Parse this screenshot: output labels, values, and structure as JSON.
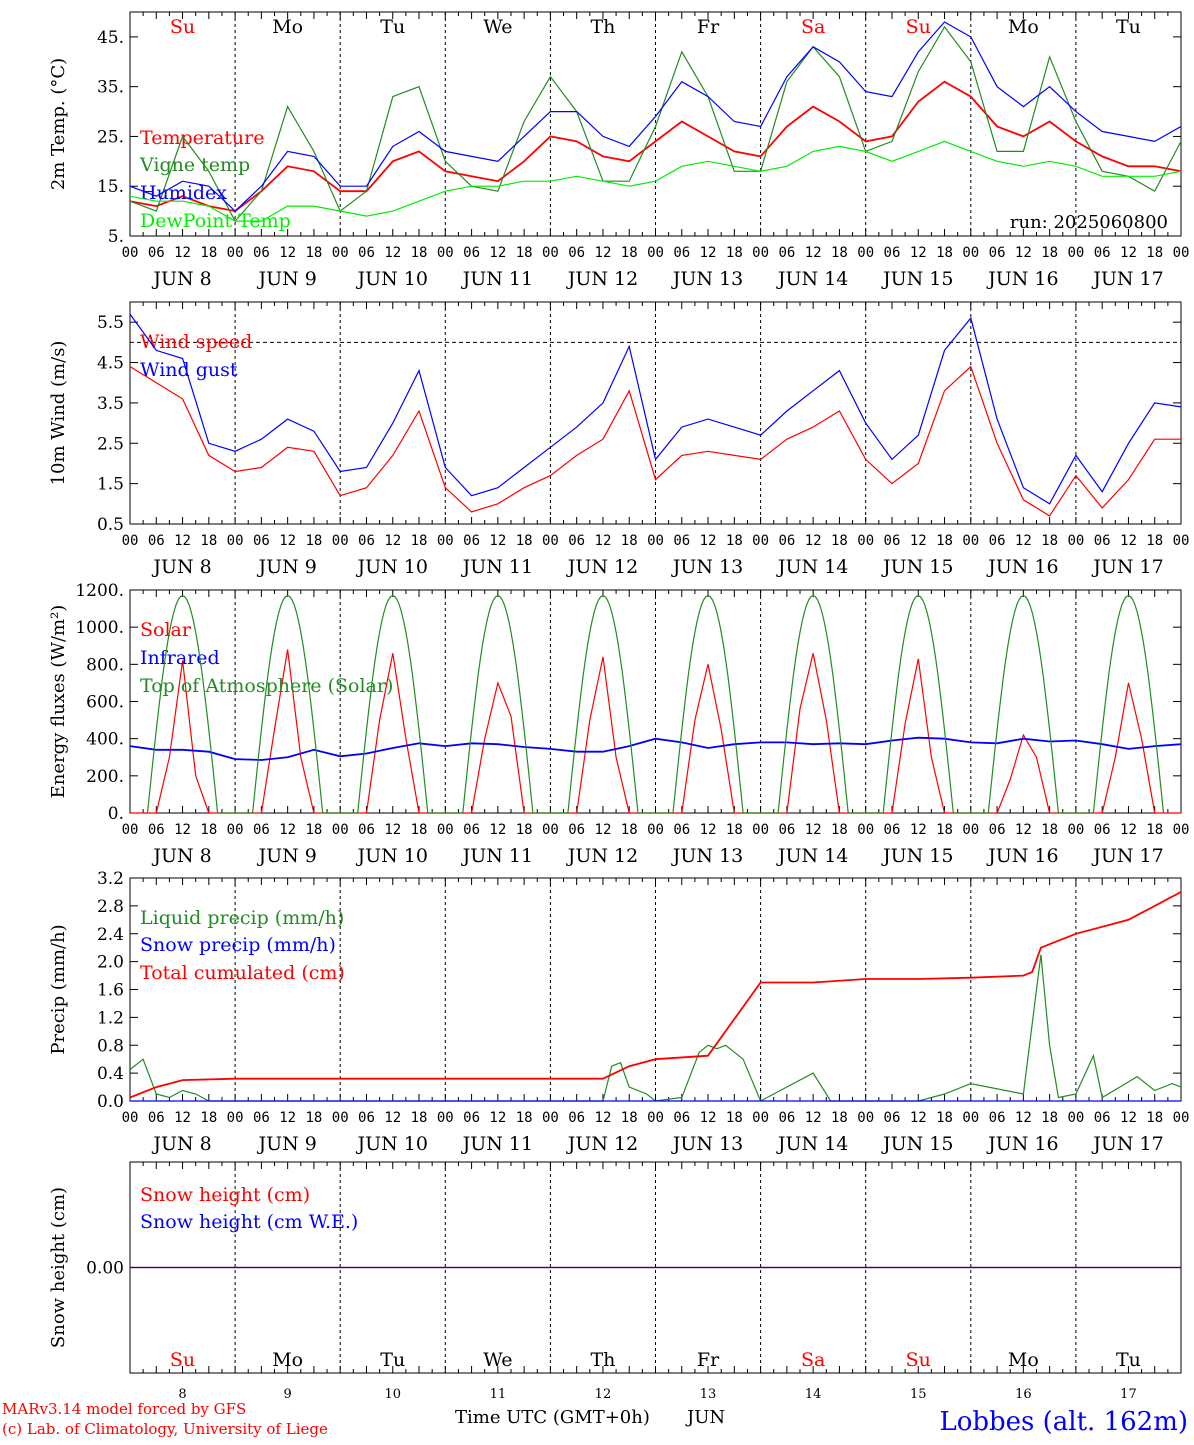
{
  "days": {
    "short": [
      "Su",
      "Mo",
      "Tu",
      "We",
      "Th",
      "Fr",
      "Sa",
      "Su",
      "Mo",
      "Tu"
    ],
    "colors": [
      "#ff0000",
      "#000000",
      "#000000",
      "#000000",
      "#000000",
      "#000000",
      "#ff0000",
      "#ff0000",
      "#000000",
      "#000000"
    ],
    "dates": [
      "JUN  8",
      "JUN  9",
      "JUN 10",
      "JUN 11",
      "JUN 12",
      "JUN 13",
      "JUN 14",
      "JUN 15",
      "JUN 16",
      "JUN 17"
    ],
    "numbers": [
      "8",
      "9",
      "10",
      "11",
      "12",
      "13",
      "14",
      "15",
      "16",
      "17"
    ],
    "hours": [
      "00",
      "06",
      "12",
      "18"
    ],
    "end_hour": "00"
  },
  "footer": {
    "model_line": "MARv3.14 model forced by GFS",
    "credit_line": "(c) Lab. of Climatology, University of Liege",
    "xlabel": "Time UTC (GMT+0h)",
    "month": "JUN",
    "location": "Lobbes (alt. 162m)"
  },
  "chart_data": [
    {
      "id": "temperature",
      "type": "line",
      "ylabel": "2m Temp. (°C)",
      "ylim": [
        5,
        50
      ],
      "yticks": [
        "5.",
        "15.",
        "25.",
        "35.",
        "45."
      ],
      "ytick_values": [
        5,
        15,
        25,
        35,
        45
      ],
      "x_unit": "hours since JUN 8 00 UTC",
      "annotation": "run: 2025060800",
      "series": [
        {
          "name": "Temperature",
          "color": "#ff0000",
          "x": [
            0,
            6,
            12,
            18,
            24,
            30,
            36,
            42,
            48,
            54,
            60,
            66,
            72,
            78,
            84,
            90,
            96,
            102,
            108,
            114,
            120,
            126,
            132,
            138,
            144,
            150,
            156,
            162,
            168,
            174,
            180,
            186,
            192,
            198,
            204,
            210,
            216,
            222,
            228,
            234,
            240
          ],
          "values": [
            12,
            11,
            13,
            11,
            10,
            14,
            19,
            18,
            14,
            14,
            20,
            22,
            18,
            17,
            16,
            20,
            25,
            24,
            21,
            20,
            24,
            28,
            25,
            22,
            21,
            27,
            31,
            28,
            24,
            25,
            32,
            36,
            33,
            27,
            25,
            28,
            24,
            21,
            19,
            19,
            18
          ]
        },
        {
          "name": "Vigne temp",
          "color": "#228b22",
          "x": [
            0,
            6,
            12,
            18,
            24,
            30,
            36,
            42,
            48,
            54,
            60,
            66,
            72,
            78,
            84,
            90,
            96,
            102,
            108,
            114,
            120,
            126,
            132,
            138,
            144,
            150,
            156,
            162,
            168,
            174,
            180,
            186,
            192,
            198,
            204,
            210,
            216,
            222,
            228,
            234,
            240
          ],
          "values": [
            12,
            10,
            25,
            18,
            8,
            14,
            31,
            22,
            10,
            14,
            33,
            35,
            20,
            15,
            14,
            28,
            37,
            30,
            16,
            16,
            27,
            42,
            33,
            18,
            18,
            36,
            43,
            37,
            22,
            24,
            38,
            47,
            40,
            22,
            22,
            41,
            28,
            18,
            17,
            14,
            24
          ]
        },
        {
          "name": "Humidex",
          "color": "#0000ff",
          "x": [
            0,
            6,
            12,
            18,
            24,
            30,
            36,
            42,
            48,
            54,
            60,
            66,
            72,
            78,
            84,
            90,
            96,
            102,
            108,
            114,
            120,
            126,
            132,
            138,
            144,
            150,
            156,
            162,
            168,
            174,
            180,
            186,
            192,
            198,
            204,
            210,
            216,
            222,
            228,
            234,
            240
          ],
          "values": [
            15,
            13,
            16,
            15,
            10,
            15,
            22,
            21,
            15,
            15,
            23,
            26,
            22,
            21,
            20,
            25,
            30,
            30,
            25,
            23,
            29,
            36,
            33,
            28,
            27,
            37,
            43,
            40,
            34,
            33,
            42,
            48,
            45,
            35,
            31,
            35,
            30,
            26,
            25,
            24,
            27
          ]
        },
        {
          "name": "DewPoint Temp",
          "color": "#00ee00",
          "x": [
            0,
            6,
            12,
            18,
            24,
            30,
            36,
            42,
            48,
            54,
            60,
            66,
            72,
            78,
            84,
            90,
            96,
            102,
            108,
            114,
            120,
            126,
            132,
            138,
            144,
            150,
            156,
            162,
            168,
            174,
            180,
            186,
            192,
            198,
            204,
            210,
            216,
            222,
            228,
            234,
            240
          ],
          "values": [
            13,
            12,
            12,
            11,
            8,
            8,
            11,
            11,
            10,
            9,
            10,
            12,
            14,
            15,
            15,
            16,
            16,
            17,
            16,
            15,
            16,
            19,
            20,
            19,
            18,
            19,
            22,
            23,
            22,
            20,
            22,
            24,
            22,
            20,
            19,
            20,
            19,
            17,
            17,
            17,
            18
          ]
        }
      ]
    },
    {
      "id": "wind",
      "type": "line",
      "ylabel": "10m Wind (m/s)",
      "ylim": [
        0.5,
        6
      ],
      "yticks": [
        "0.5",
        "1.5",
        "2.5",
        "3.5",
        "4.5",
        "5.5"
      ],
      "ytick_values": [
        0.5,
        1.5,
        2.5,
        3.5,
        4.5,
        5.5
      ],
      "hline": 5,
      "x_unit": "hours since JUN 8 00 UTC",
      "series": [
        {
          "name": "Wind speed",
          "color": "#ff0000",
          "x": [
            0,
            6,
            12,
            18,
            24,
            30,
            36,
            42,
            48,
            54,
            60,
            66,
            72,
            78,
            84,
            90,
            96,
            102,
            108,
            114,
            120,
            126,
            132,
            138,
            144,
            150,
            156,
            162,
            168,
            174,
            180,
            186,
            192,
            198,
            204,
            210,
            216,
            222,
            228,
            234,
            240
          ],
          "values": [
            4.4,
            4.0,
            3.6,
            2.2,
            1.8,
            1.9,
            2.4,
            2.3,
            1.2,
            1.4,
            2.2,
            3.3,
            1.4,
            0.8,
            1.0,
            1.4,
            1.7,
            2.2,
            2.6,
            3.8,
            1.6,
            2.2,
            2.3,
            2.2,
            2.1,
            2.6,
            2.9,
            3.3,
            2.1,
            1.5,
            2.0,
            3.8,
            4.4,
            2.5,
            1.1,
            0.7,
            1.7,
            0.9,
            1.6,
            2.6,
            2.6
          ]
        },
        {
          "name": "Wind gust",
          "color": "#0000ff",
          "x": [
            0,
            6,
            12,
            18,
            24,
            30,
            36,
            42,
            48,
            54,
            60,
            66,
            72,
            78,
            84,
            90,
            96,
            102,
            108,
            114,
            120,
            126,
            132,
            138,
            144,
            150,
            156,
            162,
            168,
            174,
            180,
            186,
            192,
            198,
            204,
            210,
            216,
            222,
            228,
            234,
            240
          ],
          "values": [
            5.7,
            4.8,
            4.6,
            2.5,
            2.3,
            2.6,
            3.1,
            2.8,
            1.8,
            1.9,
            3.0,
            4.3,
            1.9,
            1.2,
            1.4,
            1.9,
            2.4,
            2.9,
            3.5,
            4.9,
            2.1,
            2.9,
            3.1,
            2.9,
            2.7,
            3.3,
            3.8,
            4.3,
            3.0,
            2.1,
            2.7,
            4.8,
            5.6,
            3.1,
            1.4,
            1.0,
            2.2,
            1.3,
            2.5,
            3.5,
            3.4
          ]
        }
      ]
    },
    {
      "id": "energy",
      "type": "line",
      "ylabel": "Energy fluxes (W/m²)",
      "ylim": [
        0,
        1200
      ],
      "yticks": [
        "0.",
        "200.",
        "400.",
        "600.",
        "800.",
        "1000.",
        "1200."
      ],
      "ytick_values": [
        0,
        200,
        400,
        600,
        800,
        1000,
        1200
      ],
      "x_unit": "hours since JUN 8 00 UTC",
      "series": [
        {
          "name": "Solar",
          "color": "#ff0000",
          "x": [
            0,
            6,
            9,
            12,
            15,
            18,
            24,
            30,
            33,
            36,
            39,
            42,
            48,
            54,
            57,
            60,
            63,
            66,
            72,
            78,
            81,
            84,
            87,
            90,
            96,
            102,
            105,
            108,
            111,
            114,
            120,
            126,
            129,
            132,
            135,
            138,
            144,
            150,
            153,
            156,
            159,
            162,
            168,
            174,
            177,
            180,
            183,
            186,
            192,
            198,
            201,
            204,
            207,
            210,
            216,
            222,
            225,
            228,
            231,
            234,
            240
          ],
          "values": [
            0,
            0,
            300,
            820,
            200,
            0,
            0,
            0,
            450,
            880,
            300,
            0,
            0,
            0,
            500,
            860,
            400,
            0,
            0,
            0,
            400,
            700,
            520,
            0,
            0,
            0,
            500,
            840,
            300,
            0,
            0,
            0,
            500,
            800,
            450,
            0,
            0,
            0,
            560,
            860,
            500,
            0,
            0,
            0,
            480,
            830,
            300,
            0,
            0,
            0,
            180,
            420,
            300,
            0,
            0,
            0,
            300,
            700,
            400,
            0,
            0
          ]
        },
        {
          "name": "Infrared",
          "color": "#0000ff",
          "x": [
            0,
            6,
            12,
            18,
            24,
            30,
            36,
            42,
            48,
            54,
            60,
            66,
            72,
            78,
            84,
            90,
            96,
            102,
            108,
            114,
            120,
            126,
            132,
            138,
            144,
            150,
            156,
            162,
            168,
            174,
            180,
            186,
            192,
            198,
            204,
            210,
            216,
            222,
            228,
            234,
            240
          ],
          "values": [
            360,
            340,
            340,
            330,
            290,
            285,
            300,
            340,
            305,
            320,
            350,
            375,
            360,
            375,
            370,
            355,
            345,
            330,
            330,
            360,
            400,
            380,
            350,
            370,
            380,
            380,
            370,
            375,
            370,
            390,
            405,
            400,
            380,
            375,
            400,
            385,
            390,
            370,
            345,
            360,
            370
          ]
        },
        {
          "name": "Top of Atmosphere (Solar)",
          "color": "#228b22",
          "daily_peak": 1170,
          "sunrise_hour": 4,
          "sunset_hour": 20
        }
      ]
    },
    {
      "id": "precip",
      "type": "line",
      "ylabel": "Precip (mm/h)",
      "ylim": [
        0,
        3.2
      ],
      "yticks": [
        "0.0",
        "0.4",
        "0.8",
        "1.2",
        "1.6",
        "2.0",
        "2.4",
        "2.8",
        "3.2"
      ],
      "ytick_values": [
        0,
        0.4,
        0.8,
        1.2,
        1.6,
        2.0,
        2.4,
        2.8,
        3.2
      ],
      "x_unit": "hours since JUN 8 00 UTC",
      "series": [
        {
          "name": "Liquid precip (mm/h)",
          "color": "#228b22",
          "x": [
            0,
            3,
            6,
            9,
            12,
            15,
            18,
            24,
            48,
            96,
            108,
            110,
            112,
            114,
            118,
            120,
            126,
            130,
            132,
            134,
            136,
            138,
            140,
            144,
            156,
            160,
            168,
            180,
            186,
            192,
            204,
            208,
            210,
            212,
            216,
            220,
            222,
            226,
            230,
            234,
            238,
            240
          ],
          "values": [
            0.45,
            0.6,
            0.1,
            0.05,
            0.15,
            0.1,
            0,
            0,
            0,
            0,
            0,
            0.5,
            0.55,
            0.2,
            0.1,
            0,
            0.05,
            0.7,
            0.8,
            0.75,
            0.8,
            0.7,
            0.6,
            0,
            0.4,
            0,
            0,
            0,
            0.1,
            0.25,
            0.1,
            2.1,
            0.8,
            0.05,
            0.1,
            0.65,
            0.05,
            0.2,
            0.35,
            0.15,
            0.25,
            0.2
          ]
        },
        {
          "name": "Snow precip (mm/h)",
          "color": "#0000ff",
          "x": [
            0,
            240
          ],
          "values": [
            0,
            0
          ]
        },
        {
          "name": "Total cumulated (cm)",
          "color": "#ff0000",
          "x": [
            0,
            6,
            12,
            24,
            48,
            72,
            96,
            108,
            114,
            120,
            132,
            144,
            156,
            168,
            180,
            192,
            204,
            206,
            208,
            210,
            216,
            228,
            240
          ],
          "values": [
            0.05,
            0.2,
            0.3,
            0.32,
            0.32,
            0.32,
            0.32,
            0.32,
            0.5,
            0.6,
            0.65,
            1.7,
            1.7,
            1.75,
            1.75,
            1.77,
            1.8,
            1.85,
            2.2,
            2.25,
            2.4,
            2.6,
            3.0
          ]
        }
      ]
    },
    {
      "id": "snow",
      "type": "line",
      "ylabel": "Snow height (cm)",
      "ylim": [
        -1,
        1
      ],
      "yticks": [
        "0.00"
      ],
      "ytick_values": [
        0
      ],
      "x_unit": "hours since JUN 8 00 UTC",
      "series": [
        {
          "name": "Snow height (cm)",
          "color": "#ff0000",
          "x": [
            0,
            240
          ],
          "values": [
            0,
            0
          ]
        },
        {
          "name": "Snow height (cm W.E.)",
          "color": "#0000ff",
          "x": [
            0,
            240
          ],
          "values": [
            0,
            0
          ]
        }
      ]
    }
  ]
}
